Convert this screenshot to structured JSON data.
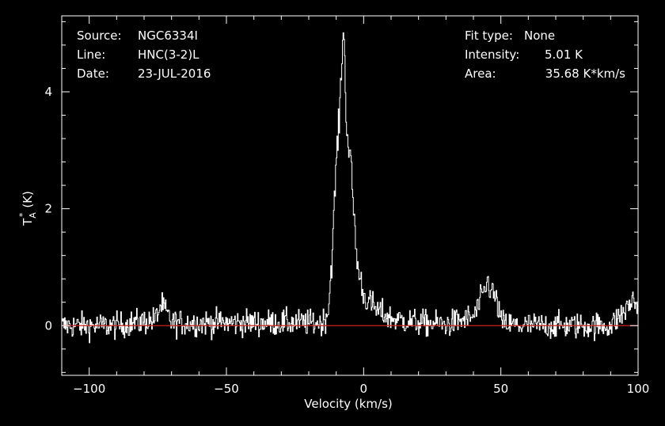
{
  "chart_data": {
    "type": "line",
    "title": "",
    "xlabel": "Velocity (km/s)",
    "ylabel": "T",
    "ylabel_sub": "A",
    "ylabel_sup": "*",
    "ylabel_unit": "(K)",
    "xlim": [
      -110,
      100
    ],
    "ylim": [
      -0.85,
      5.3
    ],
    "grid": false,
    "x_ticks": [
      -100,
      -50,
      0,
      50,
      100
    ],
    "x_tick_labels": [
      "−100",
      "−50",
      "0",
      "50",
      "100"
    ],
    "y_ticks": [
      0,
      2,
      4
    ],
    "y_tick_labels": [
      "0",
      "2",
      "4"
    ],
    "baseline": 0,
    "colors": {
      "background": "#000000",
      "spectrum": "#ffffff",
      "baseline": "#cc2222",
      "axes": "#ffffff"
    },
    "annotations_left": [
      {
        "label": "Source:",
        "value": "NGC6334I"
      },
      {
        "label": "Line:",
        "value": "HNC(3-2)L"
      },
      {
        "label": "Date:",
        "value": "23-JUL-2016"
      }
    ],
    "annotations_right": [
      {
        "label": "Fit type:",
        "value": "None"
      },
      {
        "label": "Intensity:",
        "value": "5.01 K"
      },
      {
        "label": "Area:",
        "value": "35.68 K*km/s"
      }
    ],
    "series": [
      {
        "x": [
          -110,
          -90,
          -76,
          -74,
          -73,
          -70,
          -55,
          -30,
          -15,
          -13,
          -11.5,
          -10,
          -9,
          -8.3,
          -7.8,
          -7.4,
          -7,
          -6.5,
          -6,
          -5,
          -4,
          -3,
          -2,
          -1,
          0,
          5,
          10,
          20,
          30,
          40,
          42,
          44,
          45,
          46,
          47,
          48,
          49,
          50,
          55,
          70,
          90,
          96,
          98,
          100
        ],
        "y": [
          0.0,
          0.0,
          0.1,
          0.35,
          0.3,
          0.05,
          0.05,
          0.05,
          0.05,
          0.25,
          1.3,
          2.9,
          3.5,
          4.3,
          4.9,
          5.01,
          4.5,
          3.7,
          3.2,
          2.9,
          2.2,
          1.4,
          0.9,
          0.75,
          0.5,
          0.25,
          0.12,
          0.05,
          0.02,
          0.15,
          0.35,
          0.6,
          0.75,
          0.65,
          0.55,
          0.45,
          0.3,
          0.05,
          0.0,
          0.0,
          0.0,
          0.3,
          0.45,
          0.3
        ]
      }
    ]
  }
}
